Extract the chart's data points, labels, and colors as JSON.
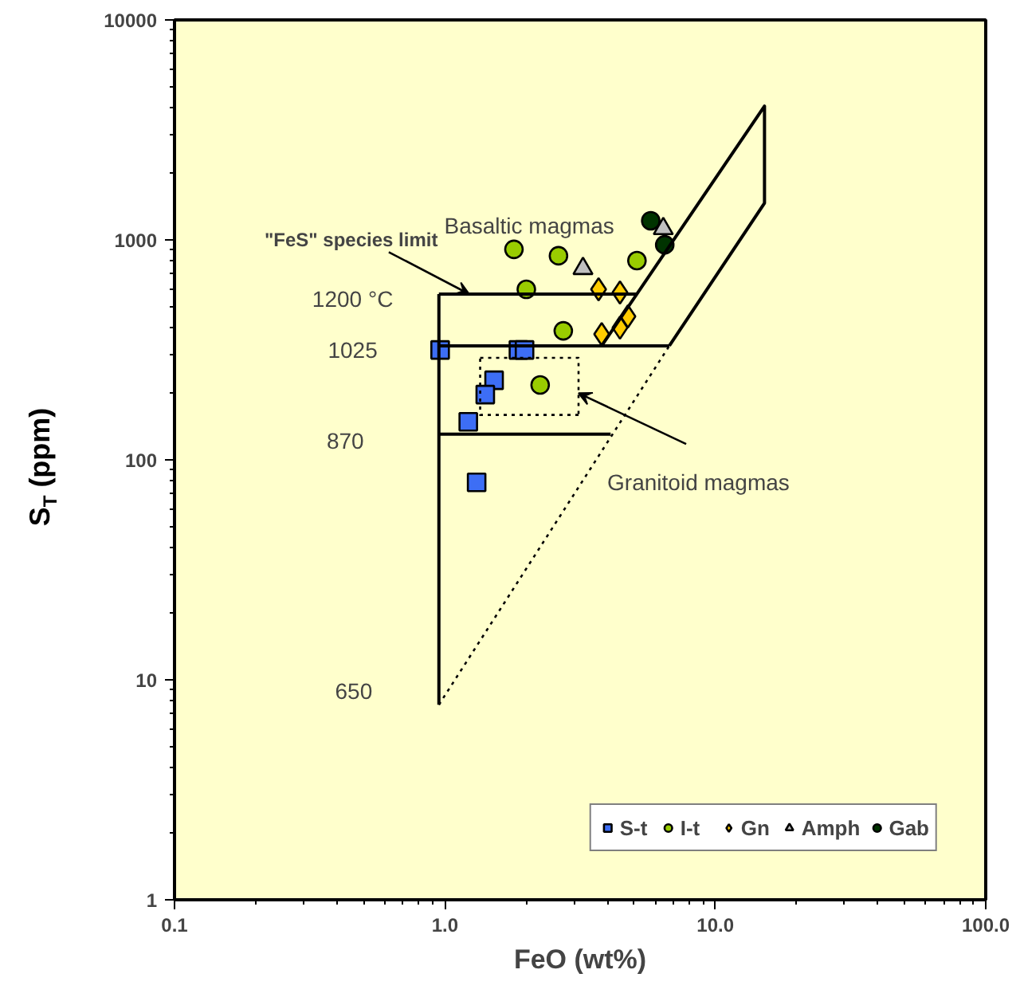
{
  "chart_data": {
    "type": "scatter",
    "xlabel": "FeO (wt%)",
    "ylabel": "S$_{T}$ (ppm)",
    "log": "xy",
    "xlim": [
      0.1,
      100
    ],
    "ylim": [
      1,
      10000
    ],
    "xticks": [
      {
        "value": 0.1,
        "label": "0.1"
      },
      {
        "value": 1,
        "label": "1.0"
      },
      {
        "value": 10,
        "label": "10.0"
      },
      {
        "value": 100,
        "label": "100.0"
      }
    ],
    "yticks": [
      1,
      10,
      100,
      1000,
      10000
    ],
    "grid": false,
    "legend": "bottom right",
    "series": [
      {
        "name": "S-t",
        "color": "#3d6ef5",
        "marker": "square",
        "x": [
          0.96,
          1.87,
          1.97,
          1.52,
          1.41,
          1.22,
          1.31
        ],
        "values": [
          316,
          316,
          316,
          230,
          198,
          149,
          79
        ]
      },
      {
        "name": "I-t",
        "color": "#99cc00",
        "marker": "circle",
        "x": [
          1.8,
          2.63,
          2.0,
          2.74,
          5.13,
          2.25
        ],
        "values": [
          906,
          847,
          596,
          386,
          805,
          219
        ]
      },
      {
        "name": "Gn",
        "color": "#ffcc00",
        "marker": "diamond",
        "x": [
          3.7,
          4.44,
          4.75,
          4.44,
          3.8
        ],
        "values": [
          596,
          577,
          449,
          399,
          373
        ]
      },
      {
        "name": "Amph",
        "color": "#c0c0c0",
        "marker": "triangle",
        "x": [
          3.24,
          6.42
        ],
        "values": [
          741,
          1125
        ]
      },
      {
        "name": "Gab",
        "color": "#003300",
        "marker": "circle",
        "x": [
          5.77,
          6.5
        ],
        "values": [
          1222,
          950
        ]
      },
      {
        "type": "line",
        "color": "#000000",
        "marker": "none",
        "x": [
          0.95,
          0.95
        ],
        "values": [
          7.7,
          567
        ]
      },
      {
        "type": "line",
        "color": "#000000",
        "marker": "none",
        "x": [
          0.95,
          5.1
        ],
        "values": [
          567,
          567
        ]
      },
      {
        "type": "line",
        "color": "#000000",
        "marker": "none",
        "x": [
          0.95,
          6.76
        ],
        "values": [
          330,
          330
        ]
      },
      {
        "type": "line",
        "color": "#000000",
        "marker": "none",
        "x": [
          0.95,
          4.1
        ],
        "values": [
          131,
          131
        ]
      },
      {
        "type": "line",
        "color": "#000000",
        "marker": "none",
        "x": [
          3.8,
          15.2,
          15.2,
          6.76
        ],
        "values": [
          330,
          4060,
          1470,
          330
        ]
      },
      {
        "type": "line",
        "color": "#000000",
        "marker": "none",
        "line_style": "dotted",
        "x": [
          0.95,
          6.76
        ],
        "values": [
          7.7,
          330
        ]
      },
      {
        "type": "line",
        "color": "#000000",
        "marker": "none",
        "line_style": "dotted",
        "x": [
          1.35,
          3.12,
          3.12
        ],
        "values": [
          291,
          291,
          160
        ]
      },
      {
        "type": "line",
        "color": "#000000",
        "marker": "none",
        "line_style": "dotted",
        "x": [
          3.12,
          1.35,
          1.35
        ],
        "values": [
          160,
          160,
          291
        ]
      }
    ],
    "annotations": [
      "Basaltic magmas",
      {
        "text": "\"FeS\" species limit",
        "x": 1.23,
        "y": 567
      },
      "1200 °C",
      "1025",
      "870",
      "650",
      {
        "text": "Granitoid magmas",
        "x": 3.12,
        "y": 201
      }
    ]
  }
}
